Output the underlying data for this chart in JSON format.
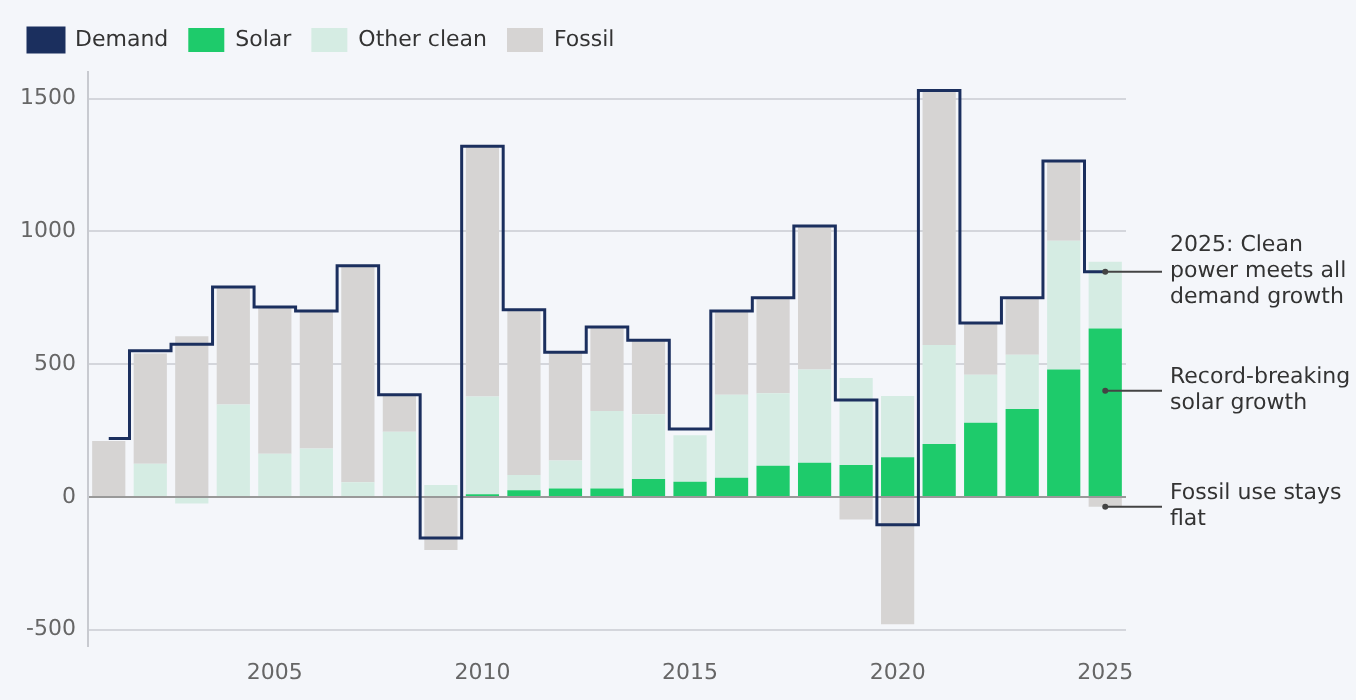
{
  "chart_data": {
    "type": "bar",
    "stacked": true,
    "categories": [
      null,
      null,
      null,
      null,
      "2005",
      null,
      null,
      null,
      null,
      "2010",
      null,
      null,
      null,
      null,
      "2015",
      null,
      null,
      null,
      null,
      "2020",
      null,
      null,
      null,
      null,
      "2025"
    ],
    "series": [
      {
        "name": "Demand",
        "type": "step",
        "color": "#1b2f5e",
        "values": [
          220,
          550,
          575,
          790,
          715,
          700,
          870,
          385,
          -155,
          1320,
          705,
          545,
          640,
          590,
          256,
          700,
          750,
          1020,
          365,
          -105,
          1530,
          655,
          750,
          1265,
          848
        ]
      },
      {
        "name": "Solar",
        "color": "#1ecb6b",
        "values": [
          0,
          0,
          0,
          0,
          0,
          0,
          0,
          null,
          null,
          10,
          25,
          32,
          32,
          67,
          57,
          72,
          117,
          129,
          120,
          149,
          199,
          279,
          331,
          480,
          634
        ]
      },
      {
        "name": "Other clean",
        "color": "#d5ece3",
        "values": [
          null,
          125,
          -25,
          348,
          162,
          182,
          55,
          245,
          45,
          368,
          57,
          105,
          291,
          244,
          175,
          313,
          273,
          351,
          328,
          231,
          373,
          181,
          204,
          485,
          251
        ]
      },
      {
        "name": "Fossil",
        "color": "#d6d4d3",
        "values": [
          210,
          415,
          605,
          440,
          553,
          523,
          817,
          135,
          -200,
          943,
          623,
          405,
          315,
          282,
          0,
          313,
          358,
          542,
          -85,
          -480,
          960,
          193,
          213,
          299,
          -37
        ]
      }
    ],
    "ylim": [
      -560,
      1600
    ],
    "yticks": [
      -500,
      0,
      500,
      1000,
      1500
    ],
    "grid": "y",
    "legend": "top left",
    "annotations": [
      {
        "text": "2025: Clean power meets all demand growth",
        "x": "2025",
        "y": 848
      },
      {
        "text": "Record-breaking solar growth",
        "x": "2025",
        "y": 400
      },
      {
        "text": "Fossil use stays flat",
        "x": "2025",
        "y": -37
      }
    ]
  }
}
